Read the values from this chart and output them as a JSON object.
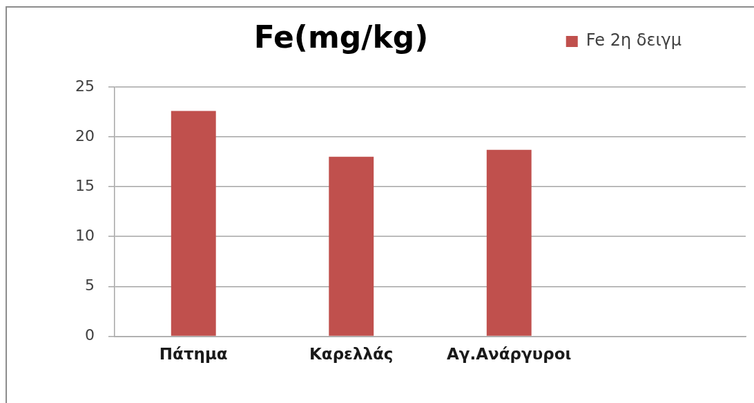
{
  "chart_data": {
    "type": "bar",
    "title": "Fe(mg/kg)",
    "categories": [
      "Πάτημα",
      "Καρελλάς",
      "Αγ.Ανάργυροι",
      null
    ],
    "series": [
      {
        "name": "Fe 2η δειγμ",
        "color": "#c0504d",
        "values": [
          22.6,
          18.0,
          18.7,
          null
        ]
      }
    ],
    "ylim": [
      0,
      25
    ],
    "yticks": [
      0,
      5,
      10,
      15,
      20,
      25
    ],
    "grid": "y",
    "legend": "top right"
  }
}
